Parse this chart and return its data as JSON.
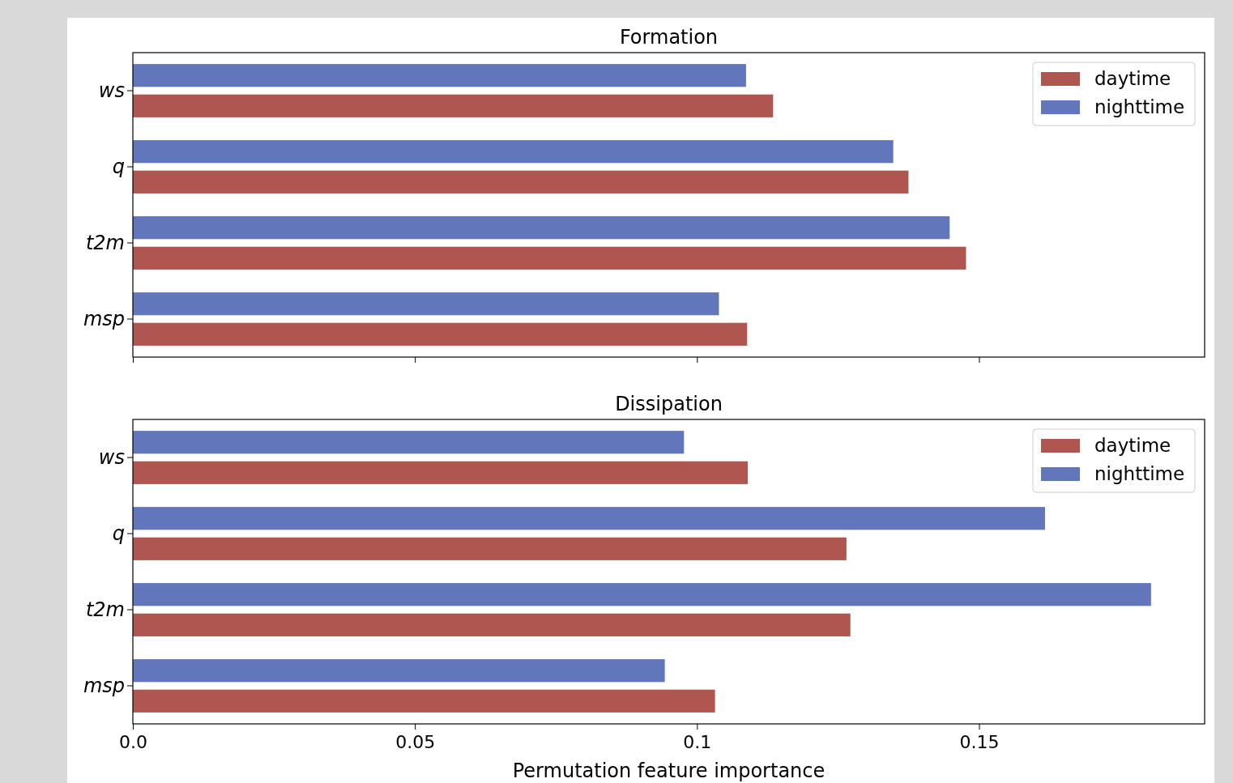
{
  "chart_data": [
    {
      "type": "bar",
      "orientation": "horizontal",
      "title": "Formation",
      "categories": [
        "ws",
        "q",
        "t2m",
        "msp"
      ],
      "series": [
        {
          "name": "daytime",
          "color": "#b05651",
          "values": [
            0.1135,
            0.1375,
            0.1477,
            0.1089
          ]
        },
        {
          "name": "nighttime",
          "color": "#6277bb",
          "values": [
            0.1087,
            0.1348,
            0.1448,
            0.1039
          ]
        }
      ],
      "xlim": [
        0,
        0.19
      ],
      "xticks": [
        0,
        0.05,
        0.1,
        0.15
      ],
      "tick_labels": "y",
      "legend": "top right"
    },
    {
      "type": "bar",
      "orientation": "horizontal",
      "title": "Dissipation",
      "xlabel": "Permutation feature importance",
      "categories": [
        "ws",
        "q",
        "t2m",
        "msp"
      ],
      "series": [
        {
          "name": "daytime",
          "color": "#b05651",
          "values": [
            0.109,
            0.1265,
            0.1272,
            0.1032
          ]
        },
        {
          "name": "nighttime",
          "color": "#6277bb",
          "values": [
            0.0977,
            0.1617,
            0.1805,
            0.0943
          ]
        }
      ],
      "xlim": [
        0,
        0.19
      ],
      "xticks": [
        {
          "value": 0,
          "label": "0.0"
        },
        0.05,
        0.1,
        0.15
      ],
      "legend": "top right"
    }
  ]
}
